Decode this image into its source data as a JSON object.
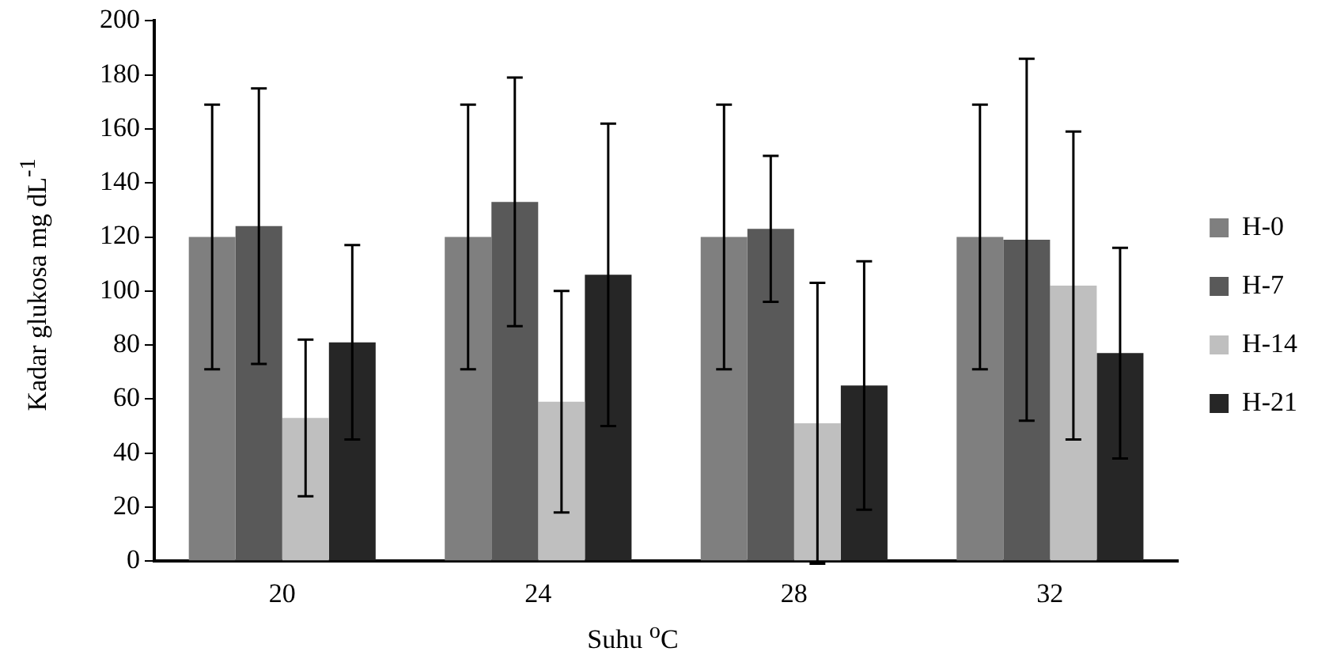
{
  "chart_data": {
    "type": "bar",
    "xlabel": "Suhu $^{o}$C",
    "ylabel": "Kadar glukosa mg dL$^{-1}$",
    "categories": [
      "20",
      "24",
      "28",
      "32"
    ],
    "series": [
      {
        "name": "H-0",
        "color": "#7f7f7f",
        "values": [
          120,
          120,
          120,
          120
        ],
        "errors": [
          49,
          49,
          49,
          49
        ]
      },
      {
        "name": "H-7",
        "color": "#595959",
        "values": [
          124,
          133,
          123,
          119
        ],
        "errors": [
          51,
          46,
          27,
          67
        ]
      },
      {
        "name": "H-14",
        "color": "#bfbfbf",
        "values": [
          53,
          59,
          51,
          102
        ],
        "errors": [
          29,
          41,
          52,
          57
        ]
      },
      {
        "name": "H-21",
        "color": "#262626",
        "values": [
          81,
          106,
          65,
          77
        ],
        "errors": [
          36,
          56,
          46,
          39
        ]
      }
    ],
    "ylim": [
      0,
      200
    ],
    "yticks": [
      0,
      20,
      40,
      60,
      80,
      100,
      120,
      140,
      160,
      180,
      200
    ],
    "grid": false,
    "legend": "right"
  }
}
